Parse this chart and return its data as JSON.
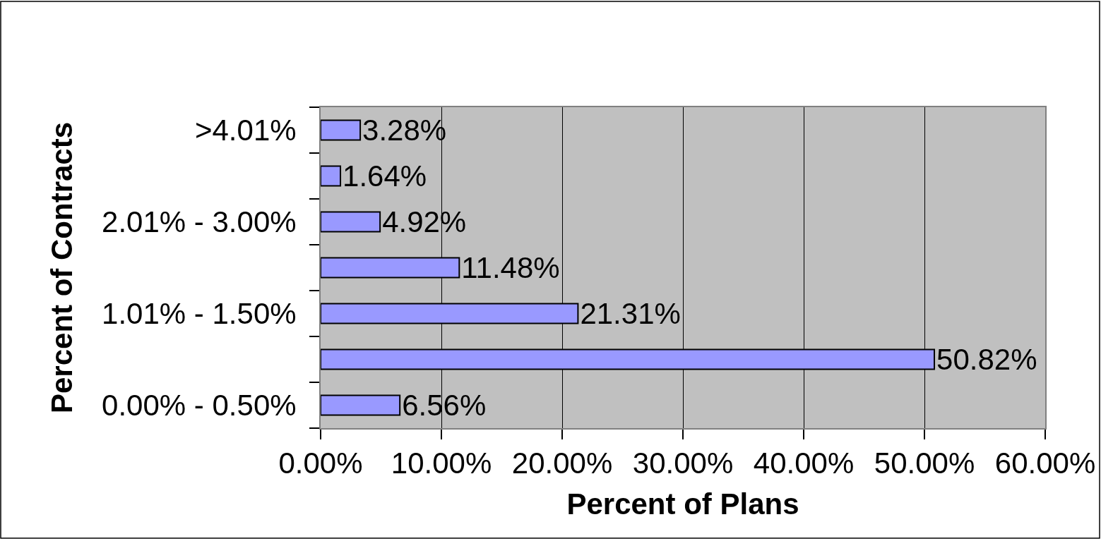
{
  "chart_data": {
    "type": "bar",
    "orientation": "horizontal",
    "xlabel": "Percent of Plans",
    "ylabel": "Percent of Contracts",
    "categories": [
      ">4.01%",
      null,
      "2.01% - 3.00%",
      null,
      "1.01% - 1.50%",
      null,
      "0.00% - 0.50%"
    ],
    "values": [
      3.28,
      1.64,
      4.92,
      11.48,
      21.31,
      50.82,
      6.56
    ],
    "value_labels": [
      "3.28%",
      "1.64%",
      "4.92%",
      "11.48%",
      "21.31%",
      "50.82%",
      "6.56%"
    ],
    "color": "#9999ff",
    "xlim": [
      0,
      60
    ],
    "xticks": [
      {
        "value": 0,
        "label": "0.00%"
      },
      {
        "value": 10,
        "label": "10.00%"
      },
      {
        "value": 20,
        "label": "20.00%"
      },
      {
        "value": 30,
        "label": "30.00%"
      },
      {
        "value": 40,
        "label": "40.00%"
      },
      {
        "value": 50,
        "label": "50.00%"
      },
      {
        "value": 60,
        "label": "60.00%"
      }
    ],
    "grid": "x"
  }
}
